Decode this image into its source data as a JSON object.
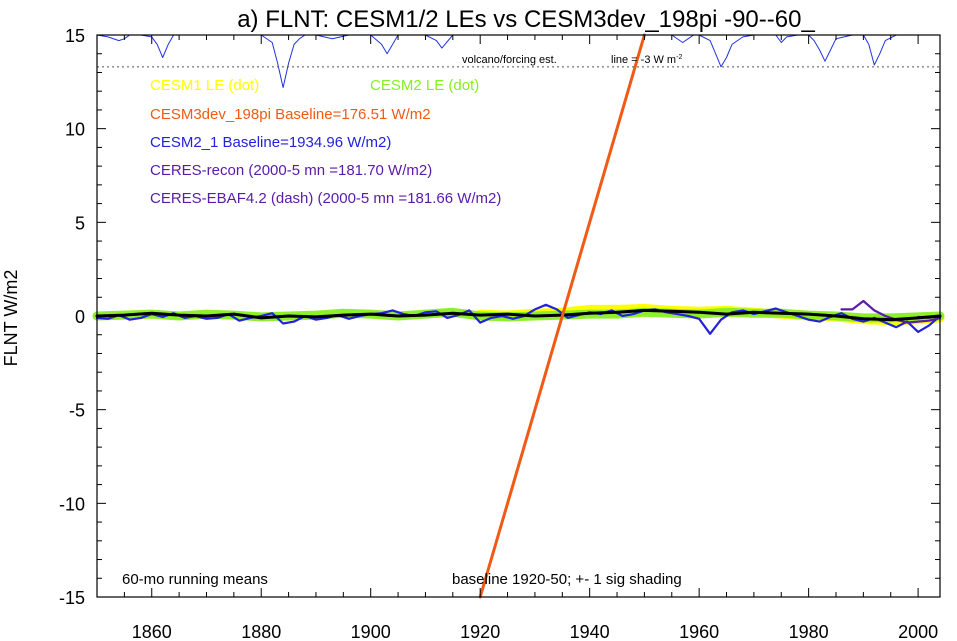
{
  "chart_data": {
    "type": "line",
    "title": "a) FLNT: CESM1/2 LEs vs CESM3dev_198pi -90--60_",
    "ylabel": "FLNT W/m2",
    "xlim": [
      1850,
      2004
    ],
    "ylim": [
      -15,
      15
    ],
    "x_ticks": [
      1860,
      1880,
      1900,
      1920,
      1940,
      1960,
      1980,
      2000
    ],
    "y_ticks": [
      15,
      10,
      5,
      0,
      -5,
      -10,
      -15
    ],
    "grid": false,
    "colors": {
      "cesm1": "#ffff00",
      "cesm2": "#88ee22",
      "cesm3dev": "#f05a14",
      "cesm2_1": "#2222dd",
      "ceres_recon": "#5a1aaa",
      "ceres_ebaf": "#5a1aaa",
      "mean": "#000000",
      "volcano": "#2233dd"
    },
    "legend": [
      {
        "key": "cesm1",
        "text": "CESM1 LE (dot)"
      },
      {
        "key": "cesm2",
        "text": "CESM2 LE (dot)"
      },
      {
        "key": "cesm3dev",
        "text": "CESM3dev_198pi Baseline=176.51 W/m2"
      },
      {
        "key": "cesm2_1",
        "text": "CESM2_1 Baseline=1934.96 W/m2)"
      },
      {
        "key": "ceres_recon",
        "text": "CERES-recon (2000-5 mn =181.70 W/m2)"
      },
      {
        "key": "ceres_ebaf",
        "text": "CERES-EBAF4.2 (dash) (2000-5 mn =181.66 W/m2)"
      }
    ],
    "annotations": {
      "volcano": "volcano/forcing est.",
      "line_label": "line = -3 W m",
      "line_sup": "-2",
      "running": "60-mo running means",
      "baseline": "baseline 1920-50; +- 1 sig shading"
    },
    "reference_line_y": 13.3,
    "series": [
      {
        "key": "cesm3dev",
        "x": [
          1920,
          1950
        ],
        "y": [
          -15,
          15
        ]
      },
      {
        "key": "cesm1",
        "x": [
          1920,
          1925,
          1930,
          1935,
          1940,
          1945,
          1950,
          1955,
          1960,
          1965,
          1970,
          1975,
          1980,
          1985,
          1990,
          1995,
          2000,
          2004
        ],
        "y": [
          0.1,
          0.05,
          0.15,
          0.2,
          0.35,
          0.35,
          0.4,
          0.3,
          0.25,
          0.3,
          0.2,
          0.1,
          0.0,
          -0.05,
          -0.2,
          -0.25,
          -0.2,
          -0.1
        ]
      },
      {
        "key": "cesm2",
        "x": [
          1850,
          1855,
          1860,
          1865,
          1870,
          1875,
          1880,
          1885,
          1890,
          1895,
          1900,
          1905,
          1910,
          1915,
          1920,
          1925,
          1930,
          1935,
          1940,
          1945,
          1950,
          1955,
          1960,
          1965,
          1970,
          1975,
          1980,
          1985,
          1990,
          1995,
          2000,
          2004
        ],
        "y": [
          0.0,
          0.05,
          0.1,
          0.0,
          0.1,
          0.05,
          -0.05,
          0.0,
          0.05,
          0.15,
          0.1,
          0.0,
          0.1,
          0.2,
          0.0,
          -0.05,
          0.0,
          0.05,
          0.1,
          0.1,
          0.2,
          0.15,
          0.1,
          0.2,
          0.15,
          0.15,
          0.05,
          0.0,
          -0.1,
          -0.1,
          -0.05,
          0.0
        ]
      },
      {
        "key": "mean",
        "x": [
          1850,
          1855,
          1860,
          1865,
          1870,
          1875,
          1880,
          1885,
          1890,
          1895,
          1900,
          1905,
          1910,
          1915,
          1920,
          1925,
          1930,
          1935,
          1940,
          1945,
          1950,
          1955,
          1960,
          1965,
          1970,
          1975,
          1980,
          1985,
          1990,
          1995,
          2000,
          2004
        ],
        "y": [
          0.0,
          0.05,
          0.15,
          0.05,
          0.0,
          0.1,
          -0.1,
          0.0,
          -0.05,
          0.05,
          0.1,
          0.0,
          0.05,
          0.15,
          0.05,
          0.1,
          0.0,
          0.05,
          0.15,
          0.2,
          0.3,
          0.25,
          0.2,
          0.1,
          0.2,
          0.15,
          0.1,
          0.0,
          -0.15,
          -0.2,
          -0.1,
          0.0
        ]
      },
      {
        "key": "cesm2_1",
        "x": [
          1850,
          1852,
          1854,
          1856,
          1858,
          1860,
          1862,
          1864,
          1866,
          1868,
          1870,
          1872,
          1874,
          1876,
          1878,
          1880,
          1882,
          1884,
          1886,
          1888,
          1890,
          1892,
          1894,
          1896,
          1898,
          1900,
          1902,
          1904,
          1906,
          1908,
          1910,
          1912,
          1914,
          1916,
          1918,
          1920,
          1922,
          1924,
          1926,
          1928,
          1930,
          1932,
          1934,
          1936,
          1938,
          1940,
          1942,
          1944,
          1946,
          1948,
          1950,
          1952,
          1954,
          1956,
          1958,
          1960,
          1962,
          1964,
          1966,
          1968,
          1970,
          1972,
          1974,
          1976,
          1978,
          1980,
          1982,
          1984,
          1986,
          1988,
          1990,
          1992,
          1994,
          1996,
          1998,
          2000,
          2002,
          2004
        ],
        "y": [
          -0.1,
          -0.15,
          0.05,
          -0.2,
          -0.1,
          0.1,
          -0.05,
          0.15,
          -0.1,
          0.0,
          -0.15,
          -0.1,
          0.1,
          -0.25,
          -0.1,
          0.0,
          0.15,
          -0.4,
          -0.3,
          0.0,
          -0.2,
          -0.1,
          0.05,
          -0.15,
          0.0,
          0.1,
          0.15,
          0.3,
          0.1,
          0.0,
          0.2,
          0.25,
          -0.1,
          0.05,
          0.3,
          -0.35,
          -0.1,
          0.0,
          -0.15,
          0.0,
          0.35,
          0.6,
          0.35,
          -0.1,
          0.05,
          0.2,
          0.1,
          0.3,
          0.0,
          0.1,
          0.3,
          0.35,
          0.2,
          0.1,
          0.0,
          -0.15,
          -0.95,
          -0.2,
          0.2,
          0.3,
          0.1,
          0.25,
          0.4,
          0.2,
          0.0,
          -0.2,
          -0.3,
          -0.05,
          0.15,
          -0.15,
          -0.3,
          -0.1,
          -0.35,
          -0.6,
          -0.3,
          -0.85,
          -0.5,
          0.0
        ]
      },
      {
        "key": "ceres_recon",
        "x": [
          1986,
          1988,
          1990,
          1992,
          1994,
          1996,
          1998,
          2000,
          2002,
          2004
        ],
        "y": [
          0.35,
          0.35,
          0.8,
          0.3,
          0.0,
          -0.2,
          -0.35,
          -0.3,
          -0.25,
          -0.1
        ]
      },
      {
        "key": "ceres_ebaf",
        "x": [
          2000,
          2002,
          2004
        ],
        "y": [
          -0.05,
          -0.1,
          0.0
        ]
      }
    ],
    "volcano_series": {
      "x": [
        1850,
        1852,
        1854,
        1855,
        1856,
        1857,
        1858,
        1860,
        1861,
        1862,
        1863,
        1864,
        1866,
        1870,
        1875,
        1880,
        1882,
        1883,
        1884,
        1885,
        1886,
        1887,
        1888,
        1890,
        1893,
        1896,
        1900,
        1902,
        1903,
        1904,
        1905,
        1907,
        1910,
        1912,
        1913,
        1915,
        1920,
        1930,
        1940,
        1950,
        1955,
        1957,
        1958,
        1959,
        1960,
        1962,
        1963,
        1964,
        1965,
        1966,
        1968,
        1970,
        1974,
        1975,
        1976,
        1978,
        1980,
        1981,
        1982,
        1983,
        1984,
        1985,
        1988,
        1990,
        1991,
        1992,
        1993,
        1994,
        1996,
        1998,
        2000
      ],
      "y": [
        15,
        14.9,
        14.7,
        14.8,
        15,
        15,
        15,
        14.9,
        14.5,
        13.8,
        14.5,
        15,
        15,
        15,
        15,
        15,
        14.6,
        13.5,
        12.2,
        13.5,
        14.5,
        14.8,
        15,
        15,
        14.8,
        15,
        15,
        14.5,
        14.0,
        14.5,
        15,
        15,
        15,
        14.7,
        14.3,
        15,
        15,
        15,
        15,
        15,
        15,
        14.6,
        14.8,
        15,
        15,
        14.7,
        14.0,
        13.3,
        13.8,
        14.5,
        14.9,
        15,
        15,
        14.6,
        14.9,
        15,
        15,
        14.7,
        14.2,
        13.6,
        14.2,
        14.8,
        15,
        15,
        14.5,
        13.4,
        14.0,
        14.7,
        15,
        15,
        15
      ]
    }
  }
}
